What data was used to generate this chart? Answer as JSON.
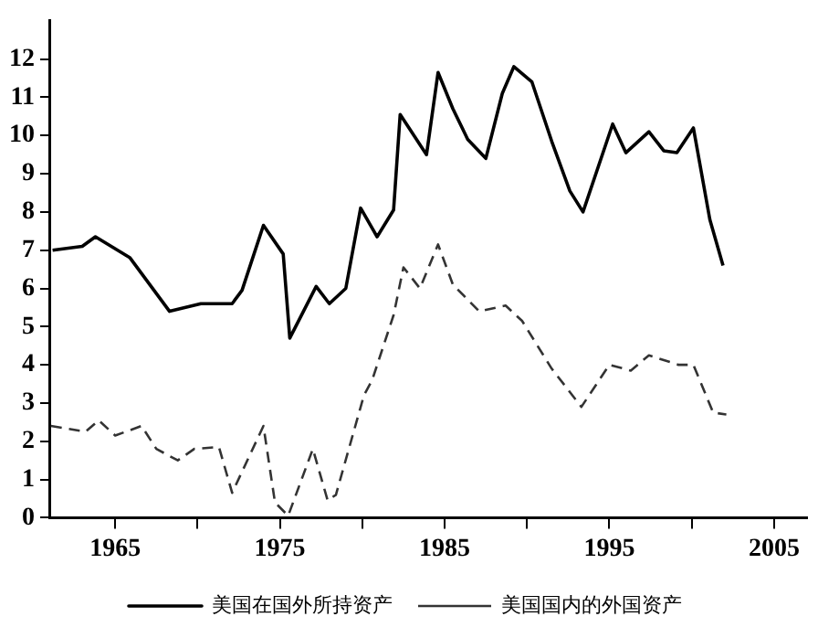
{
  "chart_data": {
    "type": "line",
    "xlim": [
      1961,
      2007
    ],
    "ylim": [
      0,
      13
    ],
    "xticks": [
      1965,
      {
        "value": 1970,
        "label": null
      },
      1975,
      {
        "value": 1980,
        "label": null
      },
      1985,
      {
        "value": 1990,
        "label": null
      },
      1995,
      {
        "value": 2000,
        "label": null
      },
      2005
    ],
    "yticks": [
      0,
      1,
      2,
      3,
      4,
      5,
      6,
      7,
      8,
      9,
      10,
      11,
      12
    ],
    "grid": false,
    "legend": "bottom",
    "marker": "none",
    "series": [
      {
        "name": "美国在国外所持资产",
        "color": "#000000",
        "line_style": "solid",
        "x": [
          1961.2,
          1963.0,
          1963.8,
          1965.9,
          1968.3,
          1970.2,
          1972.1,
          1972.7,
          1974.0,
          1975.2,
          1975.6,
          1977.2,
          1978.0,
          1979.0,
          1979.9,
          1980.9,
          1981.9,
          1982.3,
          1983.9,
          1984.6,
          1985.5,
          1986.4,
          1987.5,
          1988.5,
          1989.2,
          1990.3,
          1991.5,
          1992.6,
          1993.4,
          1995.2,
          1996.0,
          1997.4,
          1998.3,
          1999.1,
          2000.1,
          2001.1,
          2001.9
        ],
        "values": [
          7.0,
          7.1,
          7.35,
          6.8,
          5.4,
          5.6,
          5.6,
          5.95,
          7.65,
          6.9,
          4.7,
          6.05,
          5.6,
          6.0,
          8.1,
          7.35,
          8.05,
          10.55,
          9.5,
          11.65,
          10.7,
          9.9,
          9.4,
          11.1,
          11.8,
          11.4,
          9.85,
          8.55,
          8.0,
          10.3,
          9.55,
          10.1,
          9.6,
          9.55,
          10.2,
          7.8,
          6.6
        ]
      },
      {
        "name": "美国国内的外国资产",
        "color": "#333333",
        "line_style": "dashed",
        "x": [
          1961.1,
          1963.2,
          1964.0,
          1965.0,
          1966.6,
          1967.5,
          1968.8,
          1969.8,
          1971.3,
          1972.1,
          1974.0,
          1974.7,
          1975.5,
          1977.0,
          1977.9,
          1978.4,
          1980.1,
          1980.6,
          1981.9,
          1982.5,
          1983.5,
          1984.6,
          1985.5,
          1987.1,
          1988.7,
          1989.7,
          1991.5,
          1993.3,
          1995.0,
          1996.3,
          1997.4,
          1999.2,
          2000.1,
          2001.3,
          2002.1
        ],
        "values": [
          2.4,
          2.25,
          2.55,
          2.15,
          2.4,
          1.8,
          1.5,
          1.8,
          1.85,
          0.65,
          2.4,
          0.4,
          0.05,
          1.8,
          0.45,
          0.6,
          3.2,
          3.6,
          5.3,
          6.55,
          6.0,
          7.15,
          6.1,
          5.4,
          5.55,
          5.15,
          3.9,
          2.9,
          4.0,
          3.85,
          4.25,
          4.0,
          4.0,
          2.75,
          2.7
        ]
      }
    ]
  }
}
